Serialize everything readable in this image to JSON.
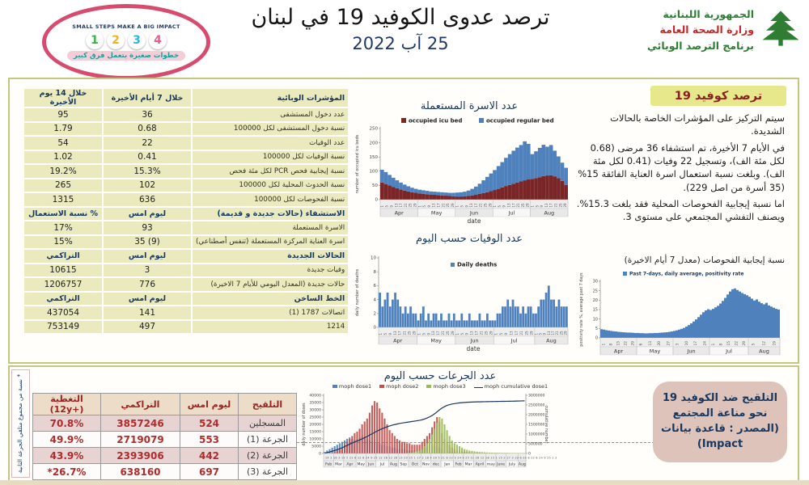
{
  "header": {
    "badge": {
      "line1": "SMALL STEPS MAKE A BIG IMPACT",
      "numbers": [
        "1",
        "2",
        "3",
        "4"
      ],
      "number_colors": [
        "#3bb54a",
        "#f2b21c",
        "#2ab7d9",
        "#e85d8a"
      ],
      "arabic": "خطوات صغيرة بتعمل فرق كبير"
    },
    "title": "ترصد عدوى الكوفيد 19 في لبنان",
    "date": "25 آب 2022",
    "moph": {
      "line1": "الجمهورية اللبنانية",
      "line2": "وزارة الصحة العامة",
      "line3": "برنامج الترصد الوبائي"
    }
  },
  "indicators_table": {
    "sections": [
      {
        "header": [
          "خلال 14 يوم الأخيرة",
          "خلال 7 أيام الأخيرة",
          "المؤشرات الوبائية"
        ],
        "rows": [
          [
            "95",
            "36",
            "عدد دخول المستشفى"
          ],
          [
            "1.79",
            "0.68",
            "نسبة دخول المستشفى لكل 100000"
          ],
          [
            "54",
            "22",
            "عدد الوفيات"
          ],
          [
            "1.02",
            "0.41",
            "نسبة الوفيات لكل 100000"
          ],
          [
            "19.2%",
            "15.3%",
            "نسبة إيجابية فحص PCR لكل مئة فحص"
          ],
          [
            "265",
            "102",
            "نسبة الحدوث المحلية لكل 100000"
          ],
          [
            "1315",
            "636",
            "نسبة الفحوصات لكل 100000"
          ]
        ]
      },
      {
        "header": [
          "% نسبة الاستعمال",
          "ليوم امس",
          "الاستشفاء (حالات جديدة و قديمة)"
        ],
        "rows": [
          [
            "17%",
            "93",
            "الاسرة المستعملة"
          ],
          [
            "15%",
            "35 (9)",
            "اسرة العناية المركزة المستعملة (تنفس أصطناعي)"
          ]
        ]
      },
      {
        "header": [
          "التراكمي",
          "ليوم امس",
          "الحالات الجديدة"
        ],
        "rows": [
          [
            "10615",
            "3",
            "وفيات جديدة"
          ],
          [
            "1206757",
            "776",
            "حالات جديدة (المعدل اليومي للأيام 7 الاخيرة)"
          ]
        ]
      },
      {
        "header": [
          "التراكمي",
          "ليوم امس",
          "الخط الساخن"
        ],
        "rows": [
          [
            "437054",
            "141",
            "اتصالات 1787 (1)"
          ],
          [
            "753149",
            "497",
            "1214"
          ]
        ]
      }
    ]
  },
  "surveillance_panel": {
    "title": "ترصد كوفيد 19",
    "p1": "سيتم التركيز على المؤشرات الخاصة بالحالات الشديدة.",
    "p2": "في الأيام 7 الأخيرة، تم استشفاء 36 مرضى (0.68 لكل مئة الف)، وتسجيل 22 وفيات (0.41 لكل مئة الف). وبلغت نسبة استعمال اسرة العناية الفائقة 15% (35 أسرة من اصل 229).",
    "p3": "اما نسبة إيجابية الفحوصات المحلية فقد بلغت 15.3%. ويصنف التفشي المجتمعي على مستوى 3.",
    "chart_caption": "نسبة إيجابية الفحوصات (معدل 7 أيام الاخيرة)"
  },
  "vaccination_table": {
    "headers": [
      "التغطية (+12y)",
      "التراكمي",
      "ليوم امس",
      "التلقيح"
    ],
    "rows": [
      [
        "70.8%",
        "3857246",
        "524",
        "المسجلين"
      ],
      [
        "49.9%",
        "2719079",
        "553",
        "الجرعة (1)"
      ],
      [
        "43.9%",
        "2393906",
        "442",
        "الجرعة (2)"
      ],
      [
        "26.7%*",
        "638160",
        "697",
        "الجرعة (3)"
      ]
    ]
  },
  "vaccination_note": "* نسبة من مجموع متلقي الجرعة الثانية",
  "vaccination_box": "التلقيح ضد الكوفيد 19 نحو مناعة المجتمع (المصدر : قاعدة بيانات Impact)",
  "colors": {
    "panel_border": "#c6c67f",
    "table_cell": "#eaeabe",
    "navy": "#17375e",
    "dark_red_text": "#b22a2a",
    "chart_blue": "#4f81bd",
    "icu_dark_red": "#7b2626",
    "excel_red": "#c0504d",
    "excel_green": "#9bbb59"
  },
  "chart_data": [
    {
      "id": "beds",
      "type": "bar",
      "title": "عدد الاسرة المستعملة",
      "ylabel": "number of occupied icu beds",
      "xlabel": "date",
      "ylim": [
        0,
        250
      ],
      "ystep": 50,
      "series": [
        {
          "name": "occupied icu bed",
          "color": "#7b2626",
          "values": [
            60,
            55,
            50,
            45,
            40,
            36,
            32,
            29,
            26,
            24,
            22,
            20,
            19,
            18,
            17,
            16,
            15,
            14,
            13,
            12,
            11,
            11,
            12,
            13,
            15,
            17,
            20,
            23,
            26,
            30,
            34,
            38,
            43,
            48,
            52,
            56,
            60,
            64,
            68,
            71,
            73,
            76,
            79,
            83,
            85,
            86,
            82,
            76,
            66,
            52
          ]
        },
        {
          "name": "occupied regular bed",
          "color": "#4f81bd",
          "values": [
            45,
            42,
            37,
            32,
            28,
            24,
            21,
            18,
            16,
            14,
            13,
            13,
            12,
            11,
            11,
            11,
            11,
            11,
            11,
            12,
            14,
            15,
            16,
            19,
            23,
            29,
            36,
            45,
            54,
            62,
            70,
            80,
            89,
            99,
            108,
            116,
            123,
            128,
            137,
            125,
            87,
            94,
            103,
            110,
            101,
            106,
            90,
            76,
            64,
            60
          ]
        }
      ],
      "months": [
        {
          "label": "Apr",
          "n": 10
        },
        {
          "label": "May",
          "n": 10
        },
        {
          "label": "Jun",
          "n": 10
        },
        {
          "label": "Jul",
          "n": 10
        },
        {
          "label": "Aug",
          "n": 10
        }
      ],
      "day_ticks": [
        "1",
        "5",
        "9",
        "13",
        "17",
        "21",
        "25",
        "29"
      ]
    },
    {
      "id": "deaths",
      "type": "bar",
      "title": "عدد الوفيات حسب اليوم",
      "ylabel": "daily number of deaths",
      "xlabel": "date",
      "ylim": [
        0,
        10
      ],
      "ystep": 2,
      "series": [
        {
          "name": "Daily deaths",
          "color": "#4f81bd",
          "values": [
            5,
            3,
            4,
            5,
            3,
            4,
            5,
            4,
            3,
            2,
            3,
            2,
            3,
            2,
            2,
            1,
            2,
            3,
            1,
            2,
            1,
            2,
            2,
            1,
            2,
            1,
            1,
            2,
            1,
            2,
            1,
            1,
            2,
            1,
            1,
            2,
            1,
            1,
            1,
            2,
            1,
            1,
            2,
            1,
            1,
            1,
            2,
            2,
            3,
            3,
            4,
            3,
            4,
            3,
            3,
            2,
            3,
            2,
            3,
            3,
            2,
            2,
            3,
            4,
            4,
            5,
            6,
            4,
            4,
            3,
            4,
            3,
            3,
            3
          ]
        }
      ],
      "months": [
        {
          "label": "Apr",
          "n": 15
        },
        {
          "label": "May",
          "n": 15
        },
        {
          "label": "Jun",
          "n": 15
        },
        {
          "label": "Jul",
          "n": 16
        },
        {
          "label": "Aug",
          "n": 13
        }
      ],
      "day_ticks": [
        "1",
        "5",
        "9",
        "13",
        "17",
        "21",
        "25",
        "29"
      ]
    },
    {
      "id": "positivity",
      "type": "bar",
      "title": "نسبة إيجابية الفحوصات (معدل 7 أيام الاخيرة)",
      "ylabel": "positivity rate %, average past 7 days",
      "xlabel": "",
      "ylim": [
        0,
        30
      ],
      "ystep": 5,
      "series": [
        {
          "name": "Past 7-days, daily average, positivity rate",
          "color": "#4f81bd",
          "values": [
            4.6,
            4.4,
            4.1,
            3.9,
            3.7,
            3.5,
            3.4,
            3.2,
            3.1,
            3.0,
            2.9,
            2.8,
            2.8,
            2.7,
            2.6,
            2.6,
            2.5,
            2.5,
            2.4,
            2.4,
            2.5,
            2.5,
            2.6,
            2.6,
            2.7,
            2.8,
            2.9,
            3.0,
            3.2,
            3.4,
            3.7,
            4.0,
            4.4,
            4.8,
            5.3,
            6.0,
            6.8,
            7.7,
            8.7,
            9.8,
            11.0,
            12.3,
            13.6,
            14.6,
            15.2,
            14.8,
            15.4,
            16.2,
            17.0,
            18.2,
            19.6,
            21.2,
            23.0,
            24.6,
            25.8,
            26.2,
            25.4,
            24.6,
            23.8,
            23.2,
            22.6,
            21.8,
            20.8,
            19.8,
            20.4,
            19.2,
            18.4,
            17.8,
            18.6,
            17.2,
            16.6,
            16.0,
            15.4,
            15.0
          ]
        }
      ],
      "months": [
        {
          "label": "Apr",
          "n": 15
        },
        {
          "label": "May",
          "n": 15
        },
        {
          "label": "Jun",
          "n": 15
        },
        {
          "label": "Jul",
          "n": 16
        },
        {
          "label": "Aug",
          "n": 13
        }
      ],
      "xticks": [
        [
          "1",
          "8",
          "15",
          "22",
          "29"
        ],
        [
          "6",
          "13",
          "20",
          "27"
        ],
        [
          "3",
          "10",
          "17",
          "24"
        ],
        [
          "1",
          "8",
          "15",
          "22",
          "29"
        ],
        [
          "5",
          "12",
          "19"
        ]
      ]
    },
    {
      "id": "doses",
      "type": "bar",
      "title": "عدد الجرعات حسب اليوم",
      "ylabel_left": "daily number of doses",
      "ylabel_right": "cumulative number",
      "ylim_left": [
        0,
        40000
      ],
      "ystep_left": 5000,
      "ylim_right": [
        0,
        3000000
      ],
      "ystep_right": 500000,
      "unit": 1000,
      "series": [
        {
          "name": "moph dose1",
          "color": "#4f81bd",
          "values": [
            1,
            2,
            3,
            4,
            5,
            6,
            7,
            8,
            9,
            10,
            11,
            10,
            9,
            10,
            11,
            12,
            11,
            10,
            9,
            8,
            8,
            7,
            7,
            6,
            6,
            5,
            5,
            4,
            4,
            3,
            3,
            3,
            3,
            2,
            2,
            2,
            2,
            2,
            2,
            3,
            4,
            4,
            5,
            5,
            5,
            4,
            4,
            3,
            2,
            2,
            2,
            1,
            1,
            1,
            1,
            1,
            0.8,
            0.8,
            0.6,
            0.6,
            0.5,
            0.5,
            0.4,
            0.4,
            0.3,
            0.3,
            0.3,
            0.3,
            0.3,
            0.3,
            0.3,
            0.2,
            0.2,
            0.2,
            0.2,
            0.2,
            0.2,
            0.2,
            0.2,
            0.2,
            0.2
          ]
        },
        {
          "name": "moph dose2",
          "color": "#c0504d",
          "values": [
            0,
            0,
            0,
            0.5,
            1,
            2,
            3,
            4,
            6,
            8,
            10,
            12,
            14,
            15,
            17,
            20,
            22,
            24,
            28,
            33,
            36,
            35,
            31,
            28,
            24,
            20,
            16,
            14,
            12,
            10,
            9,
            8,
            8,
            7,
            7,
            6,
            6,
            6,
            6,
            8,
            10,
            12,
            14,
            18,
            22,
            25,
            22,
            14,
            10,
            8,
            6,
            4,
            3,
            2,
            2,
            1.5,
            1.2,
            1,
            0.8,
            0.7,
            0.6,
            0.5,
            0.5,
            0.4,
            0.4,
            0.4,
            0.3,
            0.3,
            0.3,
            0.3,
            0.3,
            0.3,
            0.2,
            0.2,
            0.2,
            0.2,
            0.2,
            0.2,
            0.2,
            0.2,
            0.2
          ]
        },
        {
          "name": "moph dose3",
          "color": "#9bbb59",
          "values": [
            0,
            0,
            0,
            0,
            0,
            0,
            0,
            0,
            0,
            0,
            0,
            0,
            0,
            0,
            0,
            0,
            0,
            0,
            0,
            0,
            0,
            0,
            0,
            0,
            0,
            0,
            0,
            0,
            0,
            0,
            0,
            0,
            0,
            0.3,
            0.5,
            0.8,
            1,
            1.5,
            2,
            3,
            5,
            7,
            10,
            13,
            17,
            21,
            25,
            24,
            20,
            16,
            12,
            9,
            7,
            6,
            5,
            4,
            3,
            2.5,
            2,
            1.8,
            1.5,
            1.2,
            1,
            0.9,
            0.8,
            0.7,
            0.6,
            0.6,
            0.5,
            0.5,
            0.4,
            0.4,
            0.4,
            0.4,
            0.3,
            0.3,
            0.3,
            0.3,
            0.3,
            0.3,
            0.3
          ]
        }
      ],
      "line": {
        "name": "moph cumulative dose1",
        "color": "#17375e",
        "unit": 1000000,
        "values": [
          0.02,
          0.05,
          0.08,
          0.12,
          0.16,
          0.2,
          0.25,
          0.3,
          0.36,
          0.42,
          0.48,
          0.54,
          0.6,
          0.65,
          0.7,
          0.76,
          0.82,
          0.88,
          0.95,
          1.02,
          1.09,
          1.16,
          1.22,
          1.28,
          1.33,
          1.38,
          1.42,
          1.46,
          1.49,
          1.52,
          1.55,
          1.57,
          1.59,
          1.61,
          1.63,
          1.65,
          1.67,
          1.69,
          1.71,
          1.74,
          1.78,
          1.83,
          1.89,
          1.96,
          2.05,
          2.15,
          2.26,
          2.35,
          2.42,
          2.48,
          2.52,
          2.55,
          2.57,
          2.59,
          2.61,
          2.62,
          2.63,
          2.64,
          2.645,
          2.65,
          2.655,
          2.66,
          2.663,
          2.666,
          2.669,
          2.672,
          2.675,
          2.677,
          2.679,
          2.681,
          2.684,
          2.686,
          2.688,
          2.69,
          2.693,
          2.696,
          2.699,
          2.702,
          2.706,
          2.71,
          2.715
        ]
      },
      "threshold_right": 500000,
      "months": [
        {
          "label": "Feb",
          "n": 4
        },
        {
          "label": "Mar",
          "n": 4
        },
        {
          "label": "Apr",
          "n": 5
        },
        {
          "label": "May",
          "n": 4
        },
        {
          "label": "Jun",
          "n": 4
        },
        {
          "label": "Jul",
          "n": 5
        },
        {
          "label": "Aug",
          "n": 4
        },
        {
          "label": "Sep",
          "n": 4
        },
        {
          "label": "Oct",
          "n": 5
        },
        {
          "label": "Nov",
          "n": 4
        },
        {
          "label": "dec",
          "n": 4
        },
        {
          "label": "Jan",
          "n": 5
        },
        {
          "label": "Feb",
          "n": 4
        },
        {
          "label": "Mar",
          "n": 4
        },
        {
          "label": "April",
          "n": 5
        },
        {
          "label": "may",
          "n": 4
        },
        {
          "label": "June",
          "n": 4
        },
        {
          "label": "July",
          "n": 5
        },
        {
          "label": "Aug",
          "n": 3
        }
      ],
      "tick_strip": "14 2 18 3 19 5 21 6 22 8 24 9 25 12 26 12 28 13 29 15 1 17 2 18 4 20 5 21 8 22 9 24 9 25 11 26 12 28 13 1 15 2 17 3 19 6 20 8 22 8 24 9 25 1 2"
    }
  ]
}
